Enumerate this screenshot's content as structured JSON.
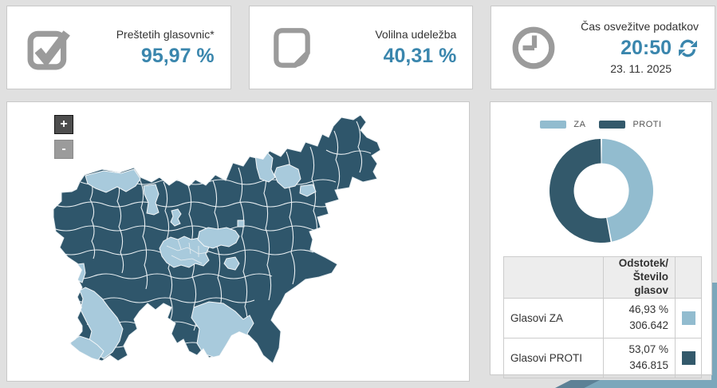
{
  "cards": [
    {
      "label": "Preštetih glasovnic*",
      "value": "95,97 %",
      "icon": "checkbox-icon"
    },
    {
      "label": "Volilna udeležba",
      "value": "40,31 %",
      "icon": "document-icon"
    },
    {
      "label": "Čas osvežitve podatkov",
      "value": "20:50",
      "date": "23. 11. 2025",
      "icon": "clock-icon"
    }
  ],
  "map": {
    "zoom_in_label": "+",
    "zoom_out_label": "-"
  },
  "chart_data": {
    "type": "pie",
    "donut": true,
    "legend_position": "top",
    "start_angle_deg": 0,
    "labels": [
      "ZA",
      "PROTI"
    ],
    "legend": [
      "ZA",
      "PROTI"
    ],
    "values": [
      46.93,
      53.07
    ],
    "votes": [
      306642,
      346815
    ],
    "colors": [
      "#92bccf",
      "#33596b"
    ]
  },
  "table": {
    "header_col2_line1": "Odstotek/",
    "header_col2_line2": "Število glasov",
    "rows": [
      {
        "label": "Glasovi ZA",
        "percent": "46,93 %",
        "votes": "306.642"
      },
      {
        "label": "Glasovi PROTI",
        "percent": "53,07 %",
        "votes": "346.815"
      }
    ]
  },
  "colors": {
    "accent": "#3a86ad",
    "icon_gray": "#9b9b9b",
    "za": "#92bccf",
    "proti": "#33596b",
    "map_za": "#a8cadc",
    "map_proti": "#2f566b",
    "ribbon": "#7ba7bb",
    "ribbon_dark": "#5d8196"
  }
}
